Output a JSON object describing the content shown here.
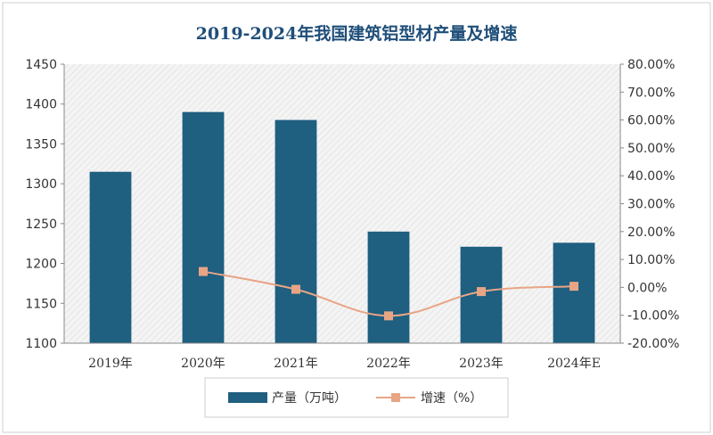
{
  "chart_data": {
    "type": "bar",
    "title": "2019-2024年我国建筑铝型材产量及增速",
    "categories": [
      "2019年",
      "2020年",
      "2021年",
      "2022年",
      "2023年",
      "2024年E"
    ],
    "series": [
      {
        "name": "产量（万吨）",
        "type": "bar",
        "axis": "left",
        "color": "#1f5f80",
        "values": [
          1315,
          1390,
          1380,
          1240,
          1221,
          1226
        ]
      },
      {
        "name": "增速（%）",
        "type": "line",
        "axis": "right",
        "color": "#e8a585",
        "marker_color": "#e8a585",
        "values": [
          null,
          5.7,
          -0.7,
          -10.2,
          -1.5,
          0.4
        ]
      }
    ],
    "y_left": {
      "min": 1100,
      "max": 1450,
      "step": 50,
      "ticks": [
        "1100",
        "1150",
        "1200",
        "1250",
        "1300",
        "1350",
        "1400",
        "1450"
      ]
    },
    "y_right": {
      "min": -20,
      "max": 80,
      "step": 10,
      "ticks": [
        "-20.00%",
        "-10.00%",
        "0.00%",
        "10.00%",
        "20.00%",
        "30.00%",
        "40.00%",
        "50.00%",
        "60.00%",
        "70.00%",
        "80.00%"
      ]
    },
    "grid": false,
    "plot_background": "diagonal-hatch",
    "legend_position": "bottom",
    "title_color": "#1f4e79"
  }
}
